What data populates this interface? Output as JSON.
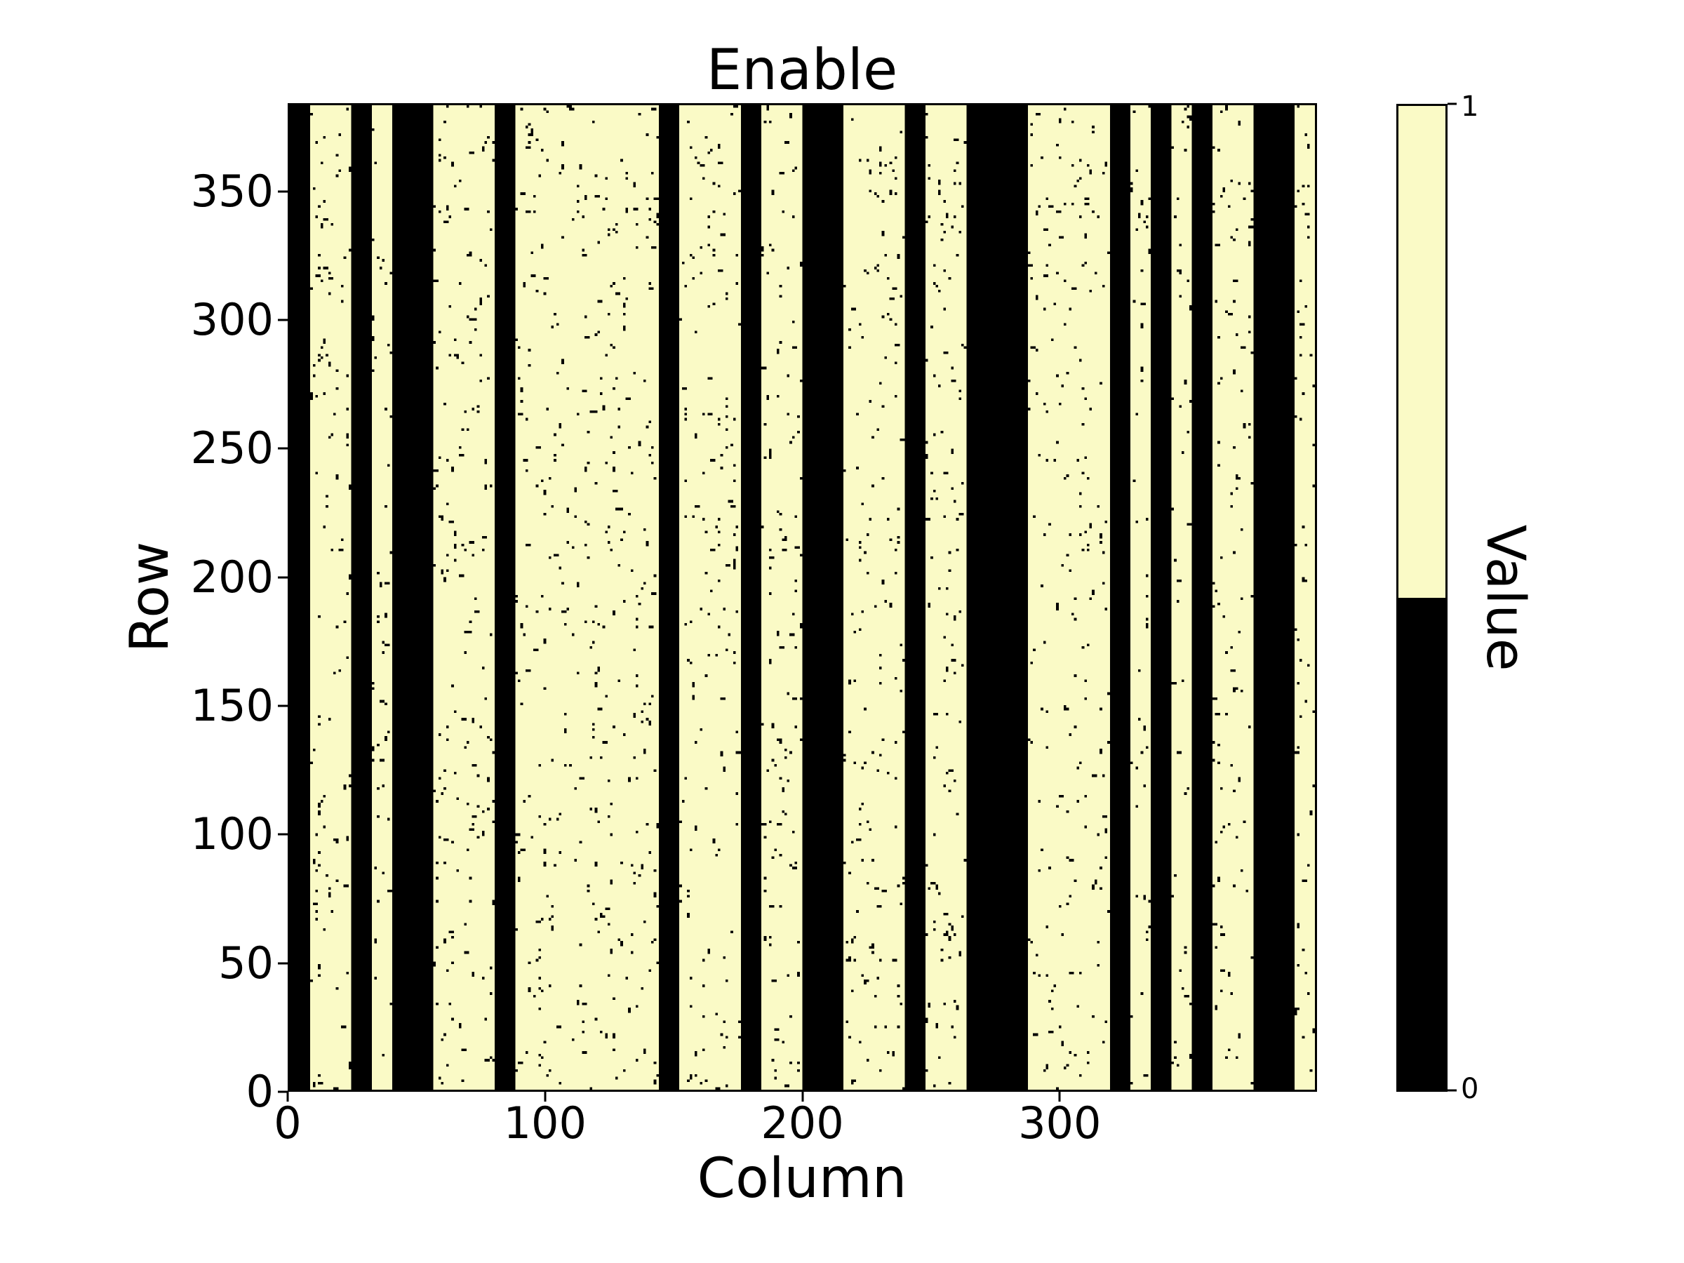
{
  "figure": {
    "title": "Enable",
    "background_color": "#ffffff"
  },
  "axes": {
    "xlabel": "Column",
    "ylabel": "Row"
  },
  "colorbar": {
    "label": "Value",
    "top_tick_label": "1",
    "bottom_tick_label": "0",
    "top_color": "#fafac6",
    "bottom_color": "#000000"
  },
  "chart_data": {
    "type": "heatmap",
    "title": "Enable",
    "xlabel": "Column",
    "ylabel": "Row",
    "colorbar_label": "Value",
    "n_rows": 384,
    "n_cols": 400,
    "xlim": [
      0,
      400
    ],
    "ylim": [
      0,
      384
    ],
    "xticks": [
      0,
      100,
      200,
      300
    ],
    "yticks": [
      0,
      50,
      100,
      150,
      200,
      250,
      300,
      350
    ],
    "colorbar_ticks": [
      0,
      1
    ],
    "value_colors": {
      "0": "#000000",
      "1": "#fafac6"
    },
    "legend": false,
    "grid": false,
    "colorbar_position": "right",
    "zero_column_bands": [
      [
        0,
        8
      ],
      [
        24,
        32
      ],
      [
        40,
        56
      ],
      [
        80,
        88
      ],
      [
        144,
        152
      ],
      [
        176,
        184
      ],
      [
        200,
        216
      ],
      [
        240,
        248
      ],
      [
        264,
        288
      ],
      [
        320,
        328
      ],
      [
        336,
        344
      ],
      [
        352,
        360
      ],
      [
        376,
        392
      ]
    ],
    "noise": {
      "description": "sparse random single-cell zero (black) speckles scattered through the enabled (value=1) regions; zero bands are solid",
      "density": 0.018,
      "double_cell_fraction": 0.1,
      "seed": 123456789
    }
  }
}
